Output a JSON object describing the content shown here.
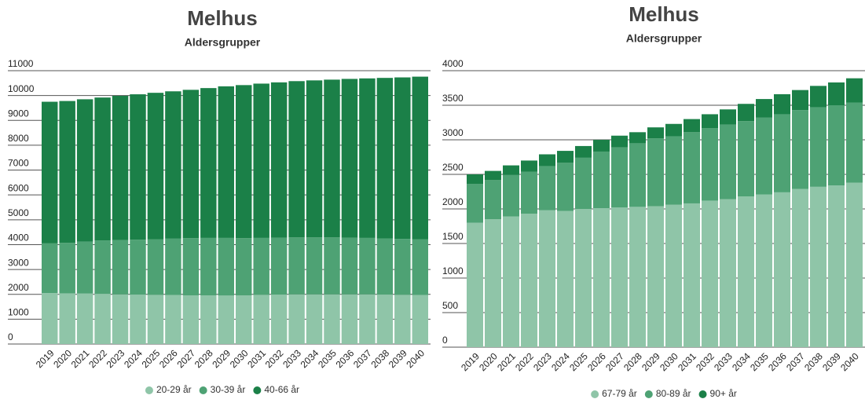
{
  "chart_data": [
    {
      "type": "bar",
      "stacked": true,
      "title": "Melhus",
      "subtitle": "Aldersgrupper",
      "categories": [
        "2019",
        "2020",
        "2021",
        "2022",
        "2023",
        "2024",
        "2025",
        "2026",
        "2027",
        "2028",
        "2029",
        "2030",
        "2031",
        "2032",
        "2033",
        "2034",
        "2035",
        "2036",
        "2037",
        "2038",
        "2039",
        "2040"
      ],
      "series": [
        {
          "name": "20-29 år",
          "color": "#8fc5a8",
          "values": [
            2050,
            2040,
            2030,
            2020,
            2000,
            1990,
            1980,
            1970,
            1960,
            1960,
            1950,
            1960,
            1980,
            1990,
            2000,
            2000,
            2000,
            2000,
            2000,
            1990,
            1980,
            1970
          ]
        },
        {
          "name": "30-39 år",
          "color": "#4ea274",
          "values": [
            2000,
            2030,
            2090,
            2150,
            2180,
            2210,
            2240,
            2270,
            2300,
            2310,
            2320,
            2300,
            2290,
            2290,
            2290,
            2290,
            2290,
            2280,
            2270,
            2260,
            2250,
            2250
          ]
        },
        {
          "name": "40-66 år",
          "color": "#1b8048",
          "values": [
            5700,
            5710,
            5730,
            5750,
            5810,
            5850,
            5890,
            5930,
            5970,
            6030,
            6100,
            6160,
            6210,
            6250,
            6290,
            6320,
            6350,
            6390,
            6420,
            6460,
            6500,
            6540
          ]
        }
      ],
      "ylim": [
        0,
        11000
      ],
      "yticks": [
        0,
        1000,
        2000,
        3000,
        4000,
        5000,
        6000,
        7000,
        8000,
        9000,
        10000,
        11000
      ],
      "grid": true,
      "legend": "bottom"
    },
    {
      "type": "bar",
      "stacked": true,
      "title": "Melhus",
      "subtitle": "Aldersgrupper",
      "categories": [
        "2019",
        "2020",
        "2021",
        "2022",
        "2023",
        "2024",
        "2025",
        "2026",
        "2027",
        "2028",
        "2029",
        "2030",
        "2031",
        "2032",
        "2033",
        "2034",
        "2035",
        "2036",
        "2037",
        "2038",
        "2039",
        "2040"
      ],
      "series": [
        {
          "name": "67-79 år",
          "color": "#8fc5a8",
          "values": [
            1800,
            1850,
            1890,
            1930,
            1980,
            1970,
            2000,
            2010,
            2020,
            2030,
            2040,
            2060,
            2080,
            2120,
            2140,
            2180,
            2210,
            2240,
            2290,
            2320,
            2340,
            2380
          ]
        },
        {
          "name": "80-89 år",
          "color": "#4ea274",
          "values": [
            560,
            570,
            600,
            610,
            640,
            700,
            740,
            820,
            870,
            920,
            980,
            990,
            1030,
            1050,
            1080,
            1090,
            1110,
            1130,
            1140,
            1150,
            1160,
            1160
          ]
        },
        {
          "name": "90+ år",
          "color": "#1b8048",
          "values": [
            140,
            130,
            140,
            160,
            170,
            170,
            170,
            170,
            170,
            160,
            160,
            180,
            190,
            200,
            220,
            250,
            270,
            290,
            290,
            310,
            330,
            350
          ]
        }
      ],
      "ylim": [
        0,
        4000
      ],
      "yticks": [
        0,
        500,
        1000,
        1500,
        2000,
        2500,
        3000,
        3500,
        4000
      ],
      "grid": true,
      "legend": "bottom"
    }
  ]
}
